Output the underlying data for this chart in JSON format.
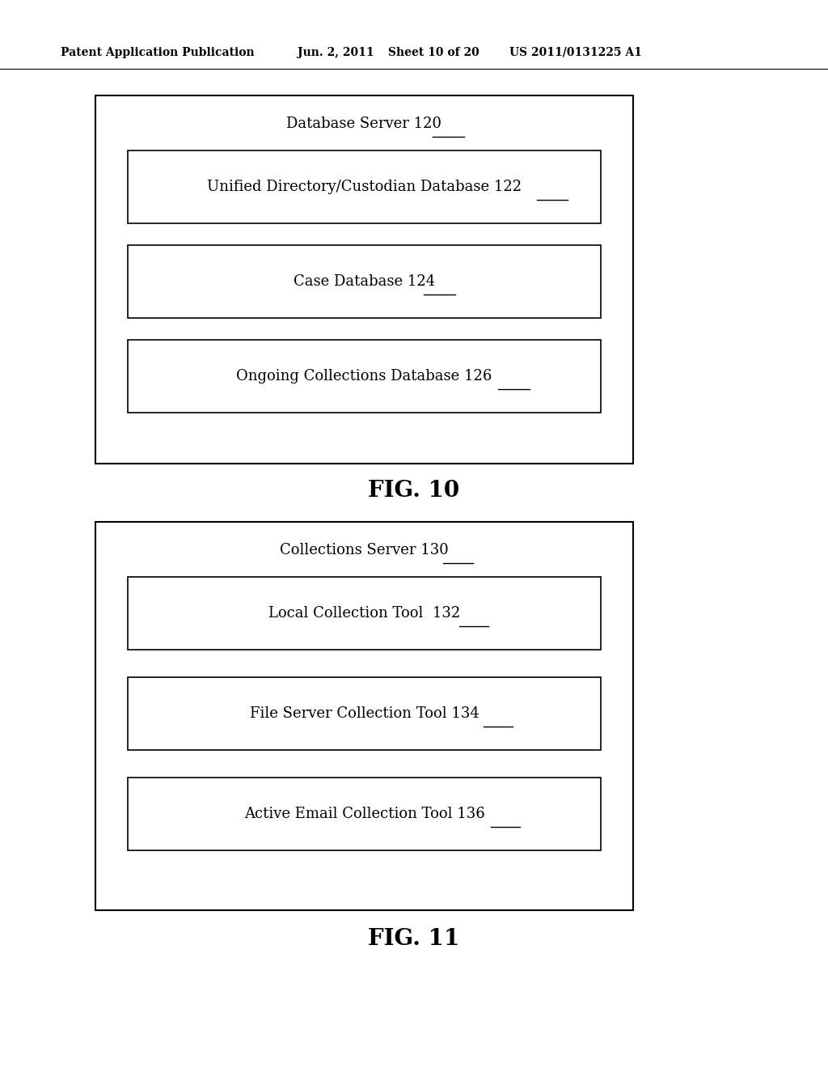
{
  "background_color": "#ffffff",
  "header_text": "Patent Application Publication",
  "header_date": "Jun. 2, 2011",
  "header_sheet": "Sheet 10 of 20",
  "header_patent": "US 2011/0131225 A1",
  "fig10_label": "FIG. 10",
  "fig11_label": "FIG. 11",
  "fig10_outer_title": "Database Server 120",
  "fig10_outer_title_num": "120",
  "fig10_inner_boxes": [
    {
      "label": "Unified Directory/Custodian Database 122",
      "num": "122"
    },
    {
      "label": "Case Database 124",
      "num": "124"
    },
    {
      "label": "Ongoing Collections Database 126",
      "num": "126"
    }
  ],
  "fig11_outer_title": "Collections Server 130",
  "fig11_outer_title_num": "130",
  "fig11_inner_boxes": [
    {
      "label": "Local Collection Tool  132",
      "num": "132"
    },
    {
      "label": "File Server Collection Tool 134",
      "num": "134"
    },
    {
      "label": "Active Email Collection Tool 136",
      "num": "136"
    }
  ],
  "header_fontsize": 10,
  "title_fontsize": 13,
  "inner_fontsize": 13,
  "fig_label_fontsize": 20
}
